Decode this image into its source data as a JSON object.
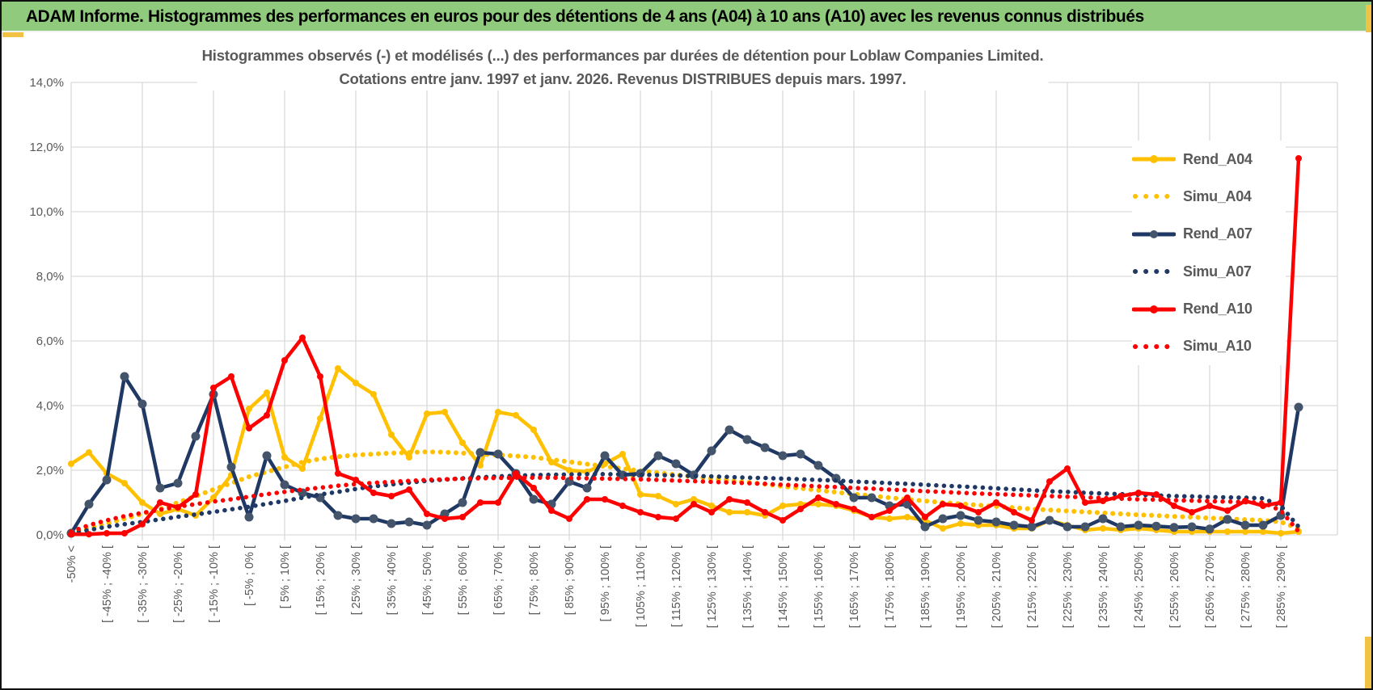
{
  "window": {
    "title": "ADAM Informe. Histogrammes des performances en euros pour des détentions de 4 ans (A04) à 10 ans (A10) avec les revenus connus distribués"
  },
  "colors": {
    "header_bg": "#90CB7D",
    "accent_yellow": "#F2C245",
    "gridline": "#D9D9D9",
    "axis_text": "#595959",
    "gold": "#FFC000",
    "navy": "#1F3864",
    "navy_marker": "#44546A",
    "red": "#FF0000"
  },
  "chart_data": {
    "type": "line",
    "title_line1": "Histogrammes observés (-) et modélisés (...) des performances par durées de détention pour Loblaw Companies Limited.",
    "title_line2": "Cotations entre janv. 1997 et janv. 2026. Revenus DISTRIBUES depuis mars. 1997.",
    "ylim": [
      0,
      14
    ],
    "y_tick_step": 2,
    "grid": true,
    "legend_position": "right",
    "y_ticks": [
      "0,0%",
      "2,0%",
      "4,0%",
      "6,0%",
      "8,0%",
      "10,0%",
      "12,0%",
      "14,0%"
    ],
    "x_tick_labels": [
      "-50% <",
      "[ -45% ; -40% [",
      "[ -35% ; -30% [",
      "[ -25% ; -20% [",
      "[ -15% ; -10% [",
      "[ -5% ; 0% [",
      "[ 5% ; 10% [",
      "[ 15% ; 20% [",
      "[ 25% ; 30% [",
      "[ 35% ; 40% [",
      "[ 45% ; 50% [",
      "[ 55% ; 60% [",
      "[ 65% ; 70% [",
      "[ 75% ; 80% [",
      "[ 85% ; 90% [",
      "[ 95% ; 100% [",
      "[ 105% ; 110% [",
      "[ 115% ; 120% [",
      "[ 125% ; 130% [",
      "[ 135% ; 140% [",
      "[ 145% ; 150% [",
      "[ 155% ; 160% [",
      "[ 165% ; 170% [",
      "[ 175% ; 180% [",
      "[ 185% ; 190% [",
      "[ 195% ; 200% [",
      "[ 205% ; 210% [",
      "[ 215% ; 220% [",
      "[ 225% ; 230% [",
      "[ 235% ; 240% [",
      "[ 245% ; 250% [",
      "[ 255% ; 260% [",
      "[ 265% ; 270% [",
      "[ 275% ; 280% [",
      "[ 285% ; 290% ["
    ],
    "bins": 70,
    "series": [
      {
        "name": "Rend_A04",
        "style": "solid",
        "color": "#FFC000",
        "marker_color": "#FFC000",
        "marker_r": 4,
        "values": [
          2.2,
          2.55,
          1.9,
          1.6,
          1.0,
          0.65,
          0.8,
          0.6,
          1.15,
          1.85,
          3.9,
          4.4,
          2.4,
          2.05,
          3.6,
          5.15,
          4.7,
          4.35,
          3.1,
          2.4,
          3.75,
          3.8,
          2.85,
          2.15,
          3.8,
          3.7,
          3.25,
          2.25,
          2.0,
          1.95,
          2.2,
          2.5,
          1.25,
          1.2,
          0.95,
          1.1,
          0.9,
          0.7,
          0.7,
          0.6,
          0.9,
          0.95,
          0.95,
          0.9,
          0.75,
          0.55,
          0.5,
          0.55,
          0.45,
          0.2,
          0.35,
          0.3,
          0.3,
          0.2,
          0.2,
          0.45,
          0.3,
          0.15,
          0.2,
          0.15,
          0.2,
          0.15,
          0.1,
          0.1,
          0.1,
          0.1,
          0.1,
          0.1,
          0.05,
          0.1
        ]
      },
      {
        "name": "Simu_A04",
        "style": "dotted",
        "color": "#FFC000",
        "dot_w": 6,
        "values": [
          0.1,
          0.2,
          0.35,
          0.5,
          0.65,
          0.8,
          1.0,
          1.2,
          1.4,
          1.6,
          1.8,
          1.95,
          2.1,
          2.25,
          2.35,
          2.42,
          2.47,
          2.5,
          2.53,
          2.55,
          2.57,
          2.56,
          2.53,
          2.5,
          2.47,
          2.44,
          2.4,
          2.33,
          2.26,
          2.19,
          2.12,
          2.05,
          1.98,
          1.92,
          1.86,
          1.8,
          1.74,
          1.69,
          1.63,
          1.57,
          1.5,
          1.44,
          1.38,
          1.32,
          1.26,
          1.21,
          1.15,
          1.1,
          1.05,
          1.0,
          0.96,
          0.92,
          0.88,
          0.84,
          0.8,
          0.77,
          0.74,
          0.71,
          0.68,
          0.65,
          0.62,
          0.6,
          0.57,
          0.55,
          0.52,
          0.5,
          0.47,
          0.45,
          0.4,
          0.2
        ]
      },
      {
        "name": "Rend_A07",
        "style": "solid",
        "color": "#1F3864",
        "marker_color": "#44546A",
        "marker_r": 5.5,
        "values": [
          0.05,
          0.95,
          1.7,
          4.9,
          4.05,
          1.45,
          1.6,
          3.05,
          4.35,
          2.1,
          0.55,
          2.45,
          1.55,
          1.3,
          1.15,
          0.6,
          0.5,
          0.5,
          0.35,
          0.4,
          0.3,
          0.65,
          1.0,
          2.55,
          2.5,
          1.9,
          1.1,
          0.95,
          1.65,
          1.45,
          2.45,
          1.85,
          1.9,
          2.45,
          2.2,
          1.85,
          2.6,
          3.25,
          2.95,
          2.7,
          2.45,
          2.5,
          2.15,
          1.75,
          1.15,
          1.15,
          0.9,
          0.95,
          0.25,
          0.5,
          0.6,
          0.45,
          0.4,
          0.3,
          0.25,
          0.45,
          0.25,
          0.25,
          0.5,
          0.25,
          0.3,
          0.27,
          0.23,
          0.25,
          0.18,
          0.48,
          0.3,
          0.3,
          0.6,
          3.95
        ]
      },
      {
        "name": "Simu_A07",
        "style": "dotted",
        "color": "#1F3864",
        "dot_w": 5.5,
        "values": [
          0.05,
          0.15,
          0.25,
          0.33,
          0.4,
          0.48,
          0.56,
          0.63,
          0.71,
          0.79,
          0.87,
          0.96,
          1.05,
          1.15,
          1.25,
          1.33,
          1.42,
          1.5,
          1.56,
          1.62,
          1.67,
          1.71,
          1.75,
          1.78,
          1.81,
          1.83,
          1.85,
          1.86,
          1.87,
          1.88,
          1.88,
          1.87,
          1.86,
          1.85,
          1.84,
          1.82,
          1.81,
          1.79,
          1.77,
          1.76,
          1.74,
          1.72,
          1.7,
          1.68,
          1.65,
          1.63,
          1.6,
          1.58,
          1.55,
          1.52,
          1.5,
          1.47,
          1.44,
          1.41,
          1.38,
          1.35,
          1.33,
          1.3,
          1.28,
          1.26,
          1.24,
          1.22,
          1.2,
          1.19,
          1.17,
          1.16,
          1.15,
          1.13,
          0.9,
          0.25
        ]
      },
      {
        "name": "Rend_A10",
        "style": "solid",
        "color": "#FF0000",
        "marker_color": "#FF0000",
        "marker_r": 4,
        "values": [
          0.02,
          0.02,
          0.05,
          0.05,
          0.33,
          1.0,
          0.85,
          1.25,
          4.55,
          4.9,
          3.3,
          3.7,
          5.4,
          6.1,
          4.9,
          1.9,
          1.7,
          1.3,
          1.2,
          1.4,
          0.65,
          0.5,
          0.55,
          1.0,
          1.0,
          1.9,
          1.45,
          0.75,
          0.5,
          1.1,
          1.1,
          0.9,
          0.7,
          0.55,
          0.5,
          0.95,
          0.7,
          1.1,
          1.0,
          0.7,
          0.45,
          0.8,
          1.15,
          0.95,
          0.8,
          0.55,
          0.75,
          1.15,
          0.55,
          0.95,
          0.9,
          0.7,
          1.0,
          0.7,
          0.45,
          1.65,
          2.05,
          1.0,
          1.05,
          1.2,
          1.3,
          1.25,
          0.9,
          0.7,
          0.9,
          0.75,
          1.05,
          0.9,
          1.0,
          11.65
        ]
      },
      {
        "name": "Simu_A10",
        "style": "dotted",
        "color": "#FF0000",
        "dot_w": 5.5,
        "values": [
          0.1,
          0.3,
          0.45,
          0.58,
          0.68,
          0.78,
          0.87,
          0.95,
          1.03,
          1.1,
          1.18,
          1.26,
          1.33,
          1.4,
          1.46,
          1.52,
          1.57,
          1.61,
          1.64,
          1.67,
          1.7,
          1.72,
          1.74,
          1.75,
          1.76,
          1.77,
          1.77,
          1.77,
          1.76,
          1.75,
          1.74,
          1.73,
          1.72,
          1.7,
          1.68,
          1.66,
          1.64,
          1.62,
          1.6,
          1.58,
          1.55,
          1.53,
          1.5,
          1.48,
          1.45,
          1.43,
          1.4,
          1.38,
          1.35,
          1.33,
          1.3,
          1.28,
          1.26,
          1.24,
          1.22,
          1.2,
          1.18,
          1.16,
          1.14,
          1.12,
          1.1,
          1.09,
          1.07,
          1.06,
          1.04,
          1.03,
          1.01,
          1.0,
          0.75,
          0.1
        ]
      }
    ]
  }
}
